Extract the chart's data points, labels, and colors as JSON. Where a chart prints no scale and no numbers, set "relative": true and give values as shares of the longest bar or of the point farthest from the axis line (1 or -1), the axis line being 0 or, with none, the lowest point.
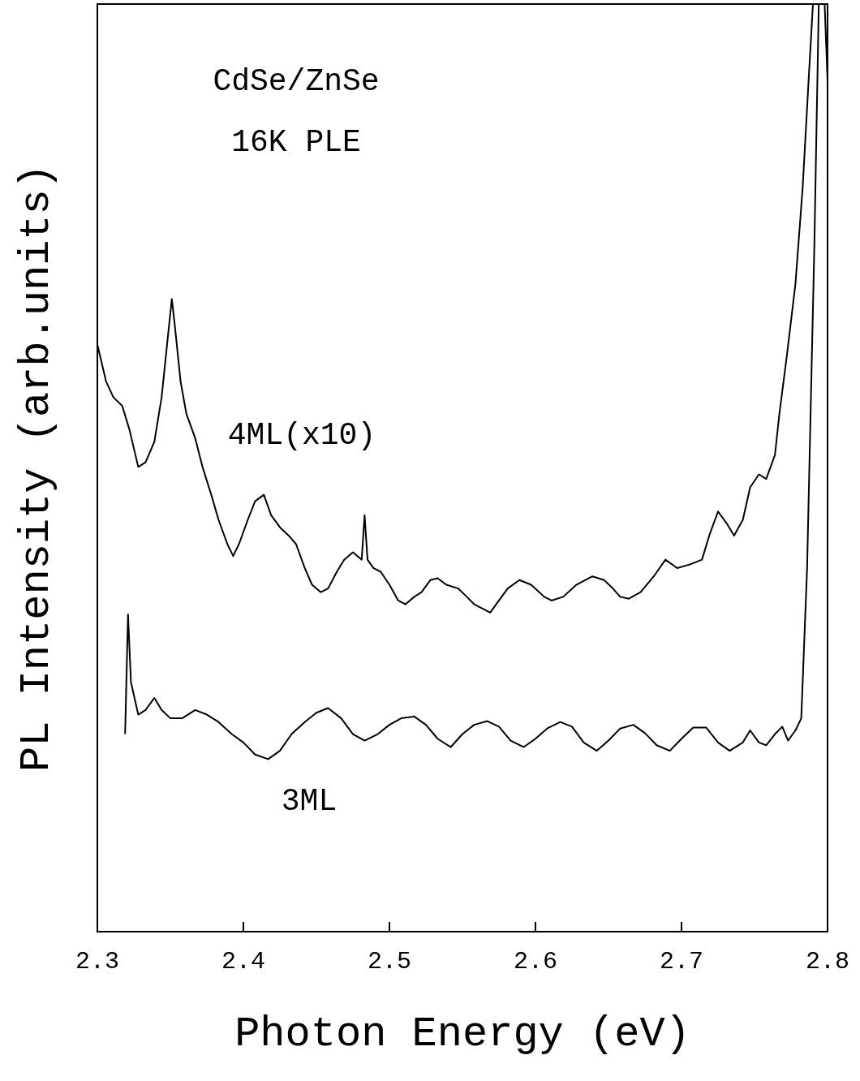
{
  "chart_data": {
    "type": "line",
    "relative": true,
    "xlabel": "Photon Energy (eV)",
    "ylabel": "PL Intensity (arb.units)",
    "annotations": [
      "CdSe/ZnSe",
      "16K PLE"
    ],
    "xlim": [
      2.3,
      2.8
    ],
    "xticks": [
      2.3,
      2.4,
      2.5,
      2.6,
      2.7,
      2.8
    ],
    "legend": false,
    "grid": false,
    "marker": "none",
    "line_style": "solid",
    "series": [
      {
        "name": "4ML(x10)",
        "color": "#000000",
        "x": [
          2.3,
          2.306,
          2.311,
          2.317,
          2.322,
          2.328,
          2.333,
          2.339,
          2.344,
          2.348,
          2.351,
          2.353,
          2.357,
          2.361,
          2.367,
          2.372,
          2.378,
          2.383,
          2.389,
          2.393,
          2.397,
          2.403,
          2.408,
          2.414,
          2.419,
          2.425,
          2.431,
          2.436,
          2.442,
          2.447,
          2.453,
          2.458,
          2.464,
          2.469,
          2.475,
          2.481,
          2.483,
          2.485,
          2.489,
          2.494,
          2.5,
          2.506,
          2.511,
          2.517,
          2.522,
          2.528,
          2.533,
          2.539,
          2.547,
          2.553,
          2.558,
          2.564,
          2.569,
          2.575,
          2.581,
          2.589,
          2.597,
          2.606,
          2.611,
          2.619,
          2.628,
          2.639,
          2.647,
          2.653,
          2.658,
          2.664,
          2.672,
          2.681,
          2.689,
          2.697,
          2.706,
          2.714,
          2.719,
          2.725,
          2.731,
          2.736,
          2.742,
          2.747,
          2.753,
          2.758,
          2.764,
          2.767,
          2.772,
          2.778,
          2.783,
          2.787,
          2.79
        ],
        "values": [
          0.633,
          0.593,
          0.576,
          0.567,
          0.541,
          0.501,
          0.506,
          0.528,
          0.576,
          0.637,
          0.682,
          0.654,
          0.593,
          0.558,
          0.532,
          0.501,
          0.471,
          0.444,
          0.418,
          0.405,
          0.418,
          0.444,
          0.464,
          0.471,
          0.449,
          0.436,
          0.427,
          0.418,
          0.392,
          0.374,
          0.366,
          0.37,
          0.388,
          0.401,
          0.409,
          0.401,
          0.449,
          0.401,
          0.392,
          0.388,
          0.374,
          0.357,
          0.353,
          0.361,
          0.366,
          0.379,
          0.381,
          0.374,
          0.37,
          0.361,
          0.353,
          0.348,
          0.344,
          0.357,
          0.37,
          0.379,
          0.374,
          0.361,
          0.357,
          0.361,
          0.374,
          0.383,
          0.379,
          0.37,
          0.361,
          0.359,
          0.366,
          0.383,
          0.401,
          0.392,
          0.396,
          0.401,
          0.427,
          0.453,
          0.44,
          0.427,
          0.444,
          0.479,
          0.493,
          0.488,
          0.514,
          0.558,
          0.619,
          0.698,
          0.803,
          0.917,
          1.0
        ]
      },
      {
        "name": "3ML",
        "color": "#000000",
        "x": [
          2.319,
          2.321,
          2.323,
          2.328,
          2.333,
          2.339,
          2.344,
          2.35,
          2.358,
          2.367,
          2.375,
          2.383,
          2.392,
          2.4,
          2.408,
          2.417,
          2.425,
          2.433,
          2.442,
          2.45,
          2.458,
          2.467,
          2.475,
          2.483,
          2.492,
          2.5,
          2.508,
          2.517,
          2.525,
          2.533,
          2.542,
          2.55,
          2.558,
          2.567,
          2.575,
          2.583,
          2.592,
          2.6,
          2.608,
          2.617,
          2.625,
          2.633,
          2.642,
          2.65,
          2.658,
          2.667,
          2.675,
          2.683,
          2.692,
          2.7,
          2.708,
          2.717,
          2.725,
          2.733,
          2.742,
          2.747,
          2.753,
          2.758,
          2.764,
          2.769,
          2.773,
          2.778,
          2.782,
          2.786,
          2.791,
          2.794,
          2.798,
          2.8
        ],
        "values": [
          0.213,
          0.342,
          0.269,
          0.234,
          0.239,
          0.252,
          0.239,
          0.23,
          0.23,
          0.239,
          0.234,
          0.226,
          0.213,
          0.204,
          0.191,
          0.186,
          0.195,
          0.213,
          0.226,
          0.236,
          0.241,
          0.23,
          0.213,
          0.206,
          0.213,
          0.223,
          0.23,
          0.232,
          0.223,
          0.208,
          0.199,
          0.213,
          0.223,
          0.227,
          0.221,
          0.206,
          0.199,
          0.208,
          0.219,
          0.226,
          0.221,
          0.204,
          0.195,
          0.206,
          0.219,
          0.223,
          0.214,
          0.201,
          0.195,
          0.208,
          0.22,
          0.22,
          0.204,
          0.195,
          0.204,
          0.217,
          0.204,
          0.201,
          0.213,
          0.221,
          0.206,
          0.217,
          0.23,
          0.392,
          0.742,
          1.0,
          1.0,
          0.917
        ]
      }
    ]
  }
}
